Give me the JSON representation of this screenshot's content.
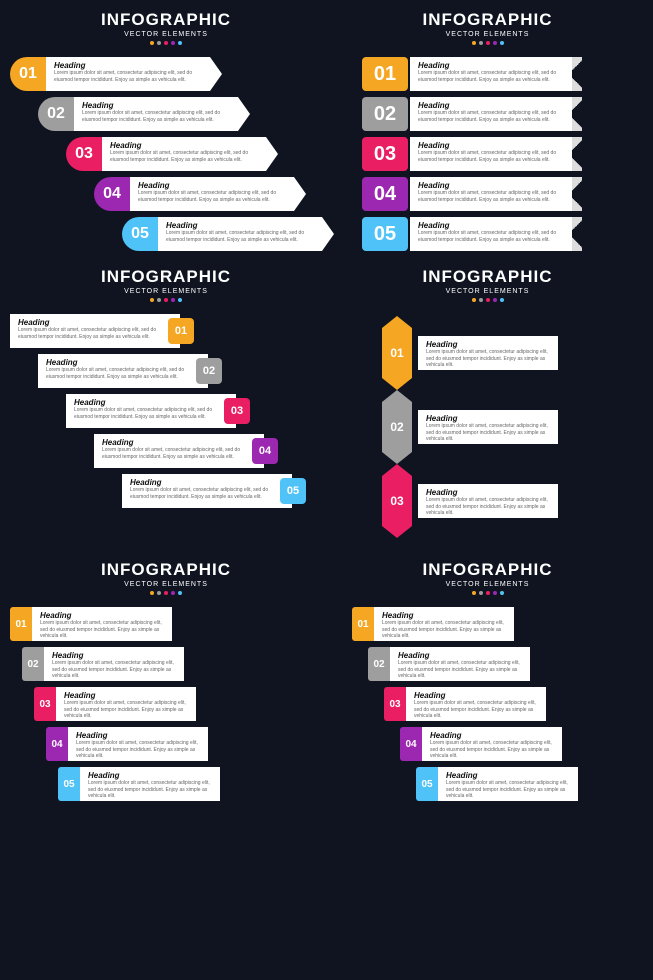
{
  "title": "INFOGRAPHIC",
  "subtitle": "VECTOR ELEMENTS",
  "dot_colors": [
    "#f5a623",
    "#9b9b9b",
    "#e91e63",
    "#9c27b0",
    "#4fc3f7"
  ],
  "colors": {
    "1": "#f5a623",
    "2": "#9e9e9e",
    "3": "#e91e63",
    "4": "#9c27b0",
    "5": "#4fc3f7"
  },
  "heading": "Heading",
  "body": "Lorem ipsum dolor sit amet, consectetur adipiscing elit, sed do eiusmod tempor incididunt. Enjoy as simple as vehicula elit.",
  "nums": [
    "01",
    "02",
    "03",
    "04",
    "05"
  ]
}
